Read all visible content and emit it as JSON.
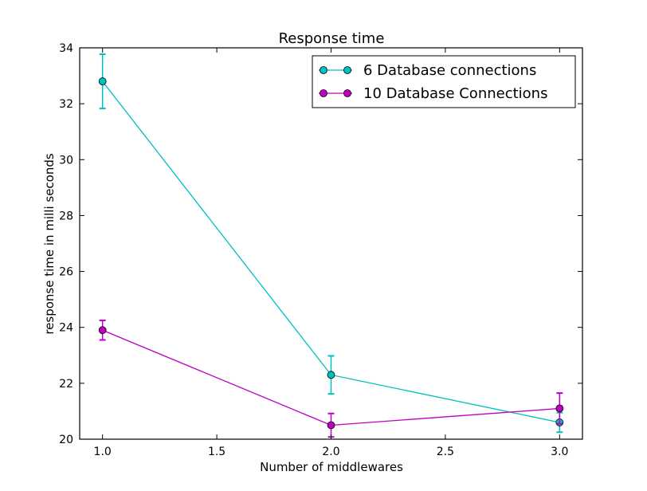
{
  "chart_data": {
    "type": "line",
    "title": "Response time",
    "xlabel": "Number of middlewares",
    "ylabel": "response time in milli seconds",
    "xlim": [
      0.9,
      3.1
    ],
    "ylim": [
      20,
      34
    ],
    "x_ticks": [
      1.0,
      1.5,
      2.0,
      2.5,
      3.0
    ],
    "x_tick_labels": [
      "1.0",
      "1.5",
      "2.0",
      "2.5",
      "3.0"
    ],
    "y_ticks": [
      20,
      22,
      24,
      26,
      28,
      30,
      32,
      34
    ],
    "y_tick_labels": [
      "20",
      "22",
      "24",
      "26",
      "28",
      "30",
      "32",
      "34"
    ],
    "grid": false,
    "legend_position": "top-right",
    "series": [
      {
        "name": "6 Database connections",
        "color": "#00bfbf",
        "marker": "circle",
        "x": [
          1.0,
          2.0,
          3.0
        ],
        "y": [
          32.8,
          22.3,
          20.6
        ],
        "yerr": [
          0.97,
          0.68,
          0.35
        ]
      },
      {
        "name": "10 Database Connections",
        "color": "#bf00bf",
        "marker": "circle",
        "x": [
          1.0,
          2.0,
          3.0
        ],
        "y": [
          23.9,
          20.5,
          21.1
        ],
        "yerr": [
          0.35,
          0.42,
          0.55
        ]
      }
    ]
  }
}
